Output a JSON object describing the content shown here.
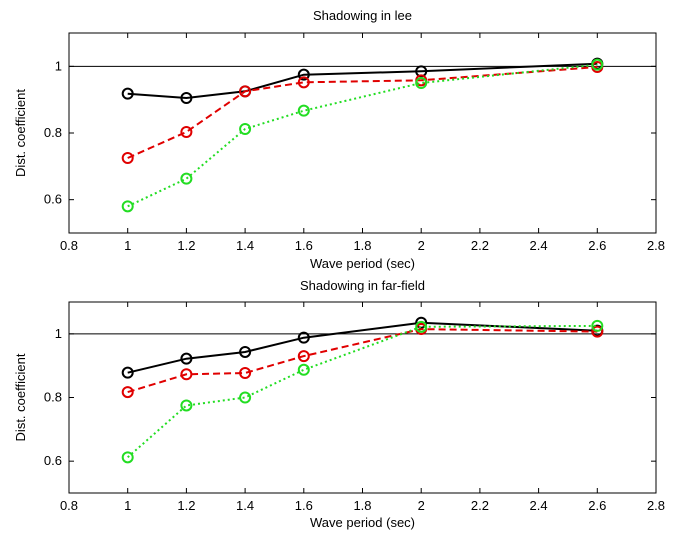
{
  "chart_data": [
    {
      "type": "line",
      "title": "Shadowing in lee",
      "xlabel": "Wave period (sec)",
      "ylabel": "Dist. coefficient",
      "xlim": [
        0.8,
        2.8
      ],
      "ylim": [
        0.5,
        1.1
      ],
      "xticks": [
        "0.8",
        "1",
        "1.2",
        "1.4",
        "1.6",
        "1.8",
        "2",
        "2.2",
        "2.4",
        "2.6",
        "2.8"
      ],
      "yticks": [
        "0.6",
        "0.8",
        "1"
      ],
      "reference_line": 1.0,
      "x": [
        1.0,
        1.2,
        1.4,
        1.6,
        2.0,
        2.6
      ],
      "series": [
        {
          "color": "#000000",
          "line_style": "solid",
          "values": [
            0.918,
            0.905,
            0.925,
            0.975,
            0.985,
            1.008
          ]
        },
        {
          "color": "#e00000",
          "line_style": "dashed",
          "values": [
            0.725,
            0.803,
            0.925,
            0.952,
            0.958,
            0.998
          ]
        },
        {
          "color": "#22dd22",
          "line_style": "dotted",
          "values": [
            0.58,
            0.663,
            0.812,
            0.867,
            0.95,
            1.005
          ]
        }
      ]
    },
    {
      "type": "line",
      "title": "Shadowing in far-field",
      "xlabel": "Wave period (sec)",
      "ylabel": "Dist. coefficient",
      "xlim": [
        0.8,
        2.8
      ],
      "ylim": [
        0.5,
        1.1
      ],
      "xticks": [
        "0.8",
        "1",
        "1.2",
        "1.4",
        "1.6",
        "1.8",
        "2",
        "2.2",
        "2.4",
        "2.6",
        "2.8"
      ],
      "yticks": [
        "0.6",
        "0.8",
        "1"
      ],
      "reference_line": 1.0,
      "x": [
        1.0,
        1.2,
        1.4,
        1.6,
        2.0,
        2.6
      ],
      "series": [
        {
          "color": "#000000",
          "line_style": "solid",
          "values": [
            0.878,
            0.922,
            0.943,
            0.988,
            1.035,
            1.01
          ]
        },
        {
          "color": "#e00000",
          "line_style": "dashed",
          "values": [
            0.817,
            0.873,
            0.877,
            0.93,
            1.015,
            1.007
          ]
        },
        {
          "color": "#22dd22",
          "line_style": "dotted",
          "values": [
            0.612,
            0.775,
            0.8,
            0.887,
            1.022,
            1.025
          ]
        }
      ]
    }
  ]
}
